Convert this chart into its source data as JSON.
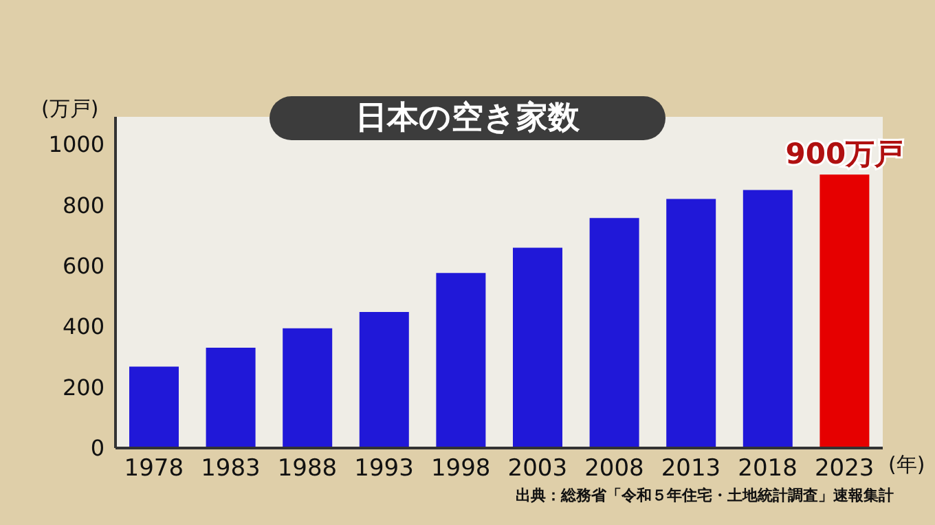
{
  "chart_data": {
    "type": "bar",
    "title": "日本の空き家数",
    "ylabel": "(万戸)",
    "xlabel": "(年)",
    "categories": [
      "1978",
      "1983",
      "1988",
      "1993",
      "1998",
      "2003",
      "2008",
      "2013",
      "2018",
      "2023"
    ],
    "values": [
      268,
      330,
      394,
      448,
      576,
      659,
      757,
      820,
      849,
      900
    ],
    "colors": [
      "#2018d8",
      "#2018d8",
      "#2018d8",
      "#2018d8",
      "#2018d8",
      "#2018d8",
      "#2018d8",
      "#2018d8",
      "#2018d8",
      "#e60000"
    ],
    "ylim": [
      0,
      1090
    ],
    "yticks": [
      0,
      200,
      400,
      600,
      800,
      1000
    ],
    "grid": false,
    "legend": false,
    "annotations": [
      {
        "text": "900万戸",
        "x": "2023",
        "y": 900
      },
      "出典：総務省「令和５年住宅・土地統計調査」速報集計"
    ]
  }
}
